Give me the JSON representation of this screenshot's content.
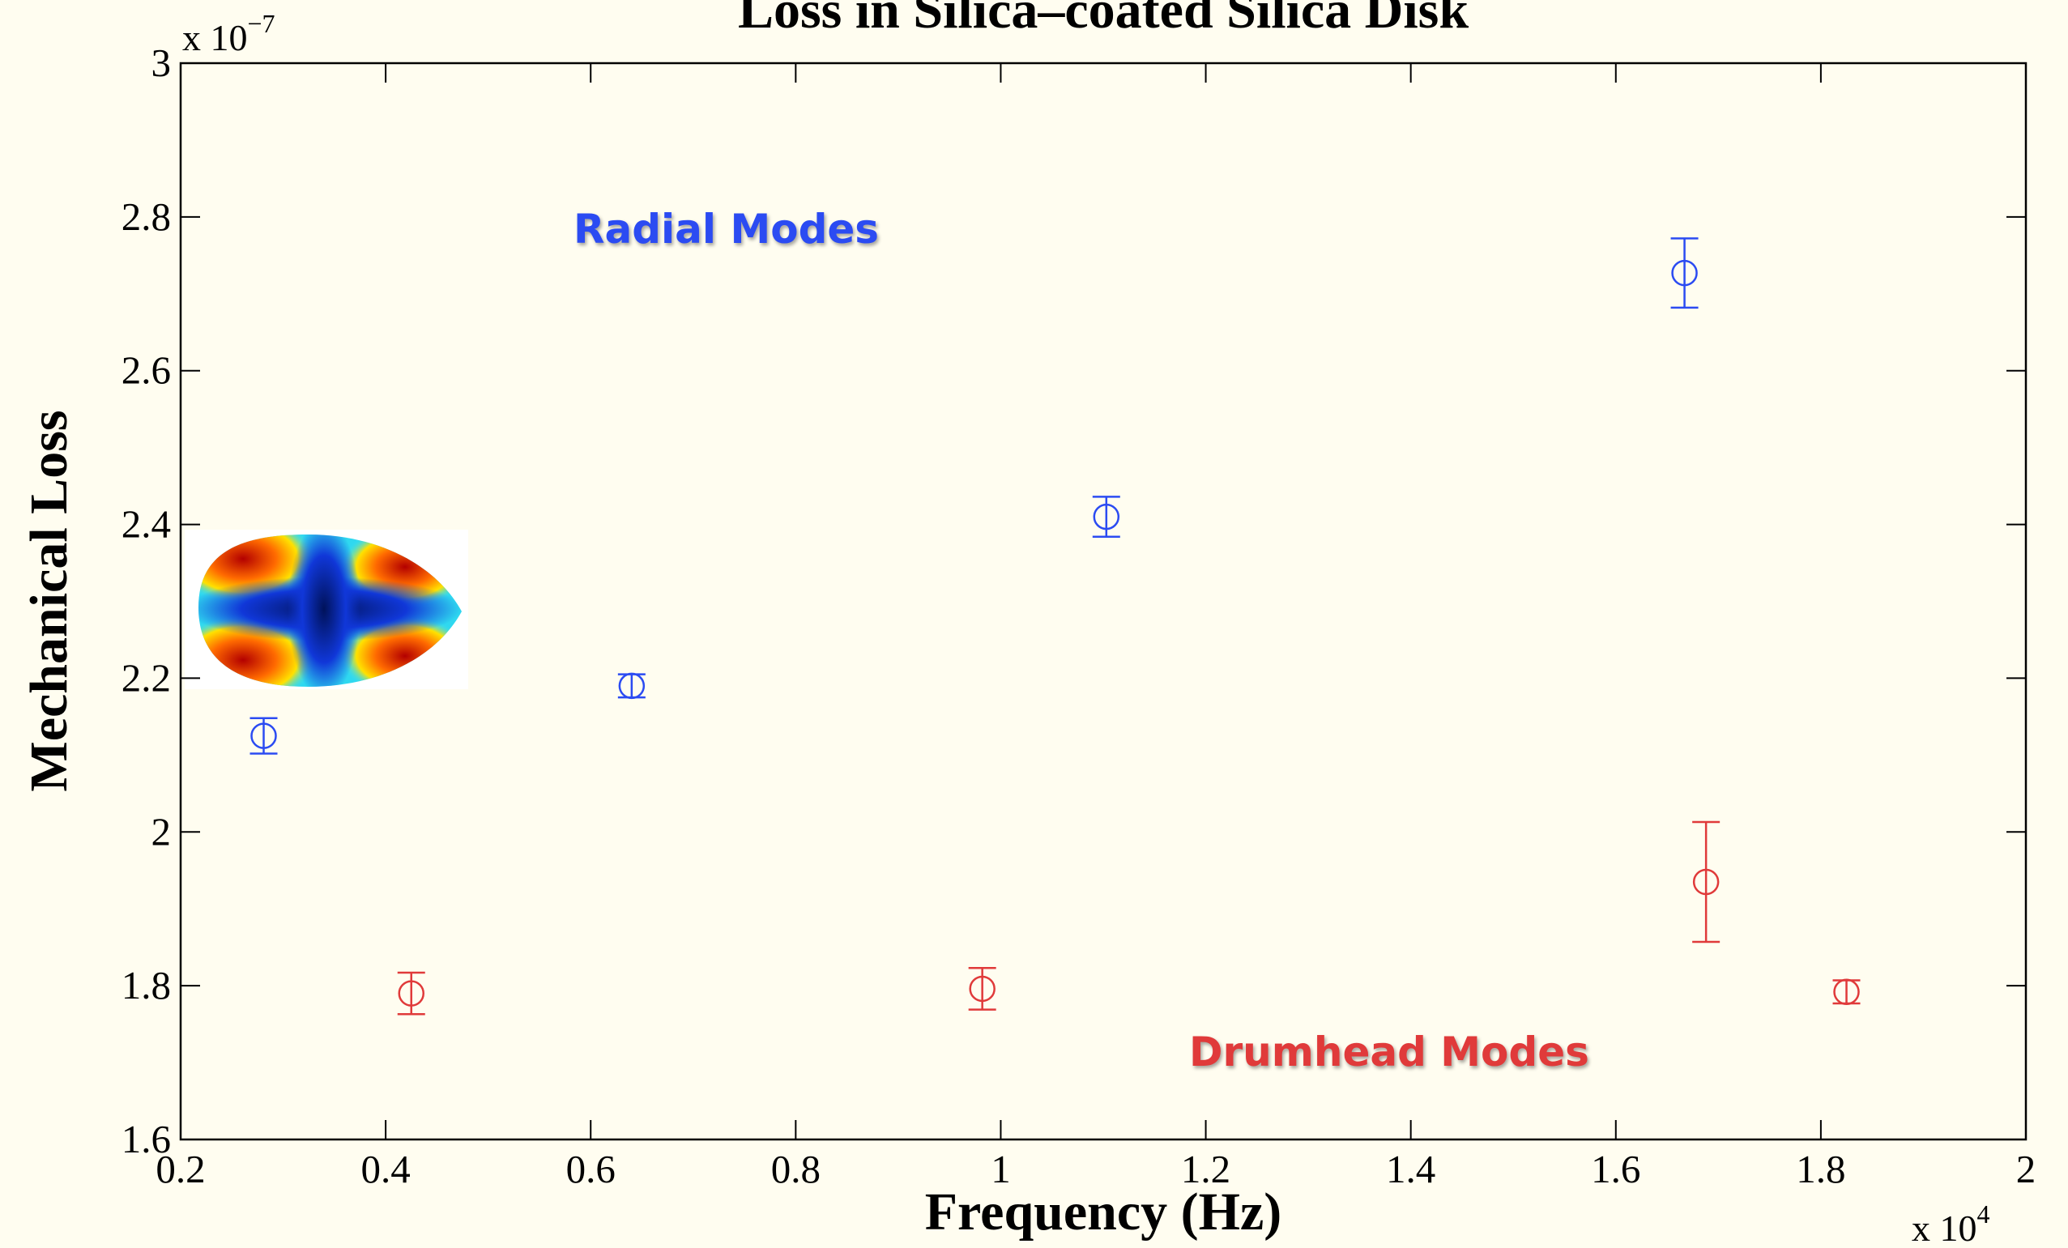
{
  "chart_data": {
    "type": "errorbar-scatter",
    "title": "Loss in Silica–coated Silica Disk",
    "x_label": "Frequency (Hz)",
    "y_label": "Mechanical Loss",
    "x_multiplier": {
      "base": "x 10",
      "exponent": "4"
    },
    "y_multiplier": {
      "base": "x 10",
      "exponent": "−7"
    },
    "xlim": [
      0.2,
      2
    ],
    "xticks": [
      0.2,
      0.4,
      0.6,
      0.8,
      1,
      1.2,
      1.4,
      1.6,
      1.8,
      2
    ],
    "ylim": [
      1.6,
      3
    ],
    "yticks": [
      1.6,
      1.8,
      2,
      2.2,
      2.4,
      2.6,
      2.8,
      3
    ],
    "series": [
      {
        "name": "Radial Modes",
        "color": "#2b4bf2",
        "x": [
          0.281,
          0.64,
          1.103,
          1.667
        ],
        "values": [
          2.125,
          2.19,
          2.41,
          2.727
        ],
        "errors": [
          0.023,
          0.015,
          0.026,
          0.045
        ]
      },
      {
        "name": "Drumhead Modes",
        "color": "#e03a3a",
        "x": [
          0.425,
          0.982,
          1.688,
          1.825
        ],
        "values": [
          1.79,
          1.796,
          1.935,
          1.792
        ],
        "errors": [
          0.027,
          0.027,
          0.078,
          0.015
        ]
      }
    ]
  }
}
